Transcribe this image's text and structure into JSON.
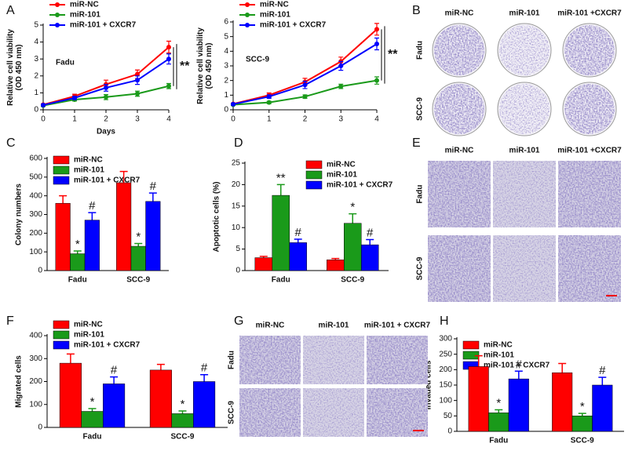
{
  "chart_data": [
    {
      "type": "line",
      "panel_label": "A",
      "inset_label": "Fadu",
      "x_label": "Days",
      "y_label": [
        "Relative cell viability",
        "(OD 450 nm)"
      ],
      "x": [
        0,
        1,
        2,
        3,
        4
      ],
      "xlim": [
        0,
        4
      ],
      "xticks": [
        0,
        1,
        2,
        3,
        4
      ],
      "ylim": [
        0,
        5
      ],
      "yticks": [
        0,
        1,
        2,
        3,
        4,
        5
      ],
      "grid": false,
      "legend": "upper left",
      "significance": "**",
      "series": [
        {
          "name": "miR-NC",
          "color": "#ff0000",
          "values": [
            0.3,
            0.8,
            1.5,
            2.1,
            3.7
          ],
          "errors": [
            0.05,
            0.12,
            0.25,
            0.25,
            0.35
          ]
        },
        {
          "name": "miR-101",
          "color": "#1a9a1a",
          "values": [
            0.25,
            0.6,
            0.75,
            0.95,
            1.4
          ],
          "errors": [
            0.05,
            0.08,
            0.15,
            0.15,
            0.15
          ]
        },
        {
          "name": "miR-101 + CXCR7",
          "color": "#0000ff",
          "values": [
            0.28,
            0.7,
            1.3,
            1.75,
            3.0
          ],
          "errors": [
            0.05,
            0.1,
            0.2,
            0.25,
            0.3
          ]
        }
      ]
    },
    {
      "type": "line",
      "inset_label": "SCC-9",
      "y_label": [
        "Relative cell viability",
        "(OD 450 nm)"
      ],
      "x": [
        0,
        1,
        2,
        3,
        4
      ],
      "xlim": [
        0,
        4
      ],
      "xticks": [
        0,
        1,
        2,
        3,
        4
      ],
      "ylim": [
        0,
        6
      ],
      "yticks": [
        0,
        1,
        2,
        3,
        4,
        5,
        6
      ],
      "grid": false,
      "legend": "upper left",
      "significance": "**",
      "series": [
        {
          "name": "miR-NC",
          "color": "#ff0000",
          "values": [
            0.4,
            1.0,
            1.9,
            3.3,
            5.5
          ],
          "errors": [
            0.05,
            0.15,
            0.25,
            0.3,
            0.4
          ]
        },
        {
          "name": "miR-101",
          "color": "#1a9a1a",
          "values": [
            0.35,
            0.5,
            0.9,
            1.6,
            2.0
          ],
          "errors": [
            0.05,
            0.08,
            0.12,
            0.15,
            0.25
          ]
        },
        {
          "name": "miR-101 + CXCR7",
          "color": "#0000ff",
          "values": [
            0.38,
            0.9,
            1.7,
            3.0,
            4.5
          ],
          "errors": [
            0.05,
            0.12,
            0.25,
            0.3,
            0.4
          ]
        }
      ]
    },
    {
      "type": "bar",
      "panel_label": "C",
      "y_label": "Colony numbers",
      "categories": [
        "Fadu",
        "SCC-9"
      ],
      "ylim": [
        0,
        600
      ],
      "yticks": [
        0,
        100,
        200,
        300,
        400,
        500,
        600
      ],
      "grid": false,
      "legend": "upper left",
      "series": [
        {
          "name": "miR-NC",
          "color": "#ff0000",
          "values": [
            360,
            470
          ],
          "errors": [
            40,
            60
          ]
        },
        {
          "name": "miR-101",
          "color": "#1a9a1a",
          "values": [
            90,
            130
          ],
          "errors": [
            15,
            15
          ],
          "markers": [
            "*",
            "*"
          ]
        },
        {
          "name": "miR-101 + CXCR7",
          "color": "#0000ff",
          "values": [
            270,
            370
          ],
          "errors": [
            40,
            45
          ],
          "markers": [
            "#",
            "#"
          ]
        }
      ]
    },
    {
      "type": "bar",
      "panel_label": "D",
      "y_label": "Apoptotic cells (%)",
      "categories": [
        "Fadu",
        "SCC-9"
      ],
      "ylim": [
        0,
        25
      ],
      "yticks": [
        0,
        5,
        10,
        15,
        20,
        25
      ],
      "grid": false,
      "legend": "upper right",
      "series": [
        {
          "name": "miR-NC",
          "color": "#ff0000",
          "values": [
            3,
            2.5
          ],
          "errors": [
            0.3,
            0.3
          ]
        },
        {
          "name": "miR-101",
          "color": "#1a9a1a",
          "values": [
            17.5,
            11
          ],
          "errors": [
            2.5,
            2.2
          ],
          "markers": [
            "**",
            "*"
          ]
        },
        {
          "name": "miR-101 + CXCR7",
          "color": "#0000ff",
          "values": [
            6.5,
            6
          ],
          "errors": [
            0.8,
            1.2
          ],
          "markers": [
            "#",
            "#"
          ]
        }
      ]
    },
    {
      "type": "bar",
      "panel_label": "F",
      "y_label": "Migrated cells",
      "categories": [
        "Fadu",
        "SCC-9"
      ],
      "ylim": [
        0,
        400
      ],
      "yticks": [
        0,
        100,
        200,
        300,
        400
      ],
      "grid": false,
      "legend": "upper left",
      "series": [
        {
          "name": "miR-NC",
          "color": "#ff0000",
          "values": [
            280,
            250
          ],
          "errors": [
            40,
            25
          ]
        },
        {
          "name": "miR-101",
          "color": "#1a9a1a",
          "values": [
            70,
            60
          ],
          "errors": [
            12,
            12
          ],
          "markers": [
            "*",
            "*"
          ]
        },
        {
          "name": "miR-101 + CXCR7",
          "color": "#0000ff",
          "values": [
            190,
            200
          ],
          "errors": [
            30,
            30
          ],
          "markers": [
            "#",
            "#"
          ]
        }
      ]
    },
    {
      "type": "bar",
      "panel_label": "H",
      "y_label": "Invaded cells",
      "categories": [
        "Fadu",
        "SCC-9"
      ],
      "ylim": [
        0,
        300
      ],
      "yticks": [
        0,
        50,
        100,
        150,
        200,
        250,
        300
      ],
      "grid": false,
      "legend": "upper left",
      "series": [
        {
          "name": "miR-NC",
          "color": "#ff0000",
          "values": [
            210,
            190
          ],
          "errors": [
            35,
            30
          ]
        },
        {
          "name": "miR-101",
          "color": "#1a9a1a",
          "values": [
            60,
            50
          ],
          "errors": [
            10,
            8
          ],
          "markers": [
            "*",
            "*"
          ]
        },
        {
          "name": "miR-101 + CXCR7",
          "color": "#0000ff",
          "values": [
            170,
            150
          ],
          "errors": [
            25,
            25
          ],
          "markers": [
            "#",
            "#"
          ]
        }
      ]
    }
  ],
  "image_panels": [
    {
      "label": "B",
      "columns": [
        "miR-NC",
        "miR-101",
        "miR-101 +CXCR7"
      ],
      "rows": [
        "Fadu",
        "SCC-9"
      ]
    },
    {
      "label": "E",
      "columns": [
        "miR-NC",
        "miR-101",
        "miR-101 +CXCR7"
      ],
      "rows": [
        "Fadu",
        "SCC-9"
      ]
    },
    {
      "label": "G",
      "columns": [
        "miR-NC",
        "miR-101",
        "miR-101 + CXCR7"
      ],
      "rows": [
        "Fadu",
        "SCC-9"
      ]
    }
  ]
}
